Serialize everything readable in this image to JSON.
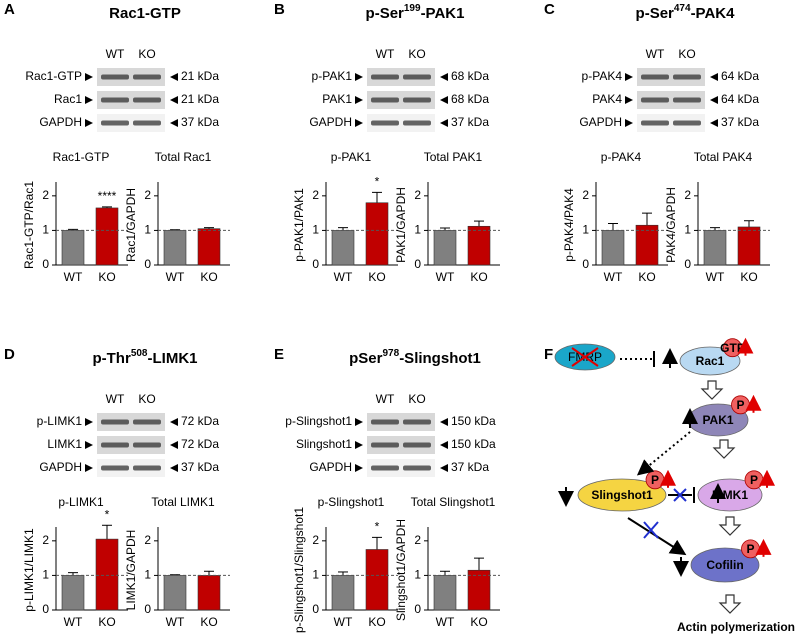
{
  "panels": [
    {
      "letter": "A",
      "title_parts": [
        {
          "text": "Rac1-GTP"
        }
      ],
      "lanes": [
        "WT",
        "KO"
      ],
      "blots": [
        {
          "label": "Rac1-GTP",
          "size": "21 kDa"
        },
        {
          "label": "Rac1",
          "size": "21 kDa"
        },
        {
          "label": "GAPDH",
          "size": "37 kDa"
        }
      ]
    },
    {
      "letter": "B",
      "title_parts": [
        {
          "text": "p-Ser"
        },
        {
          "text": "199",
          "sup": true
        },
        {
          "text": "-PAK1"
        }
      ],
      "lanes": [
        "WT",
        "KO"
      ],
      "blots": [
        {
          "label": "p-PAK1",
          "size": "68 kDa"
        },
        {
          "label": "PAK1",
          "size": "68 kDa"
        },
        {
          "label": "GAPDH",
          "size": "37 kDa"
        }
      ]
    },
    {
      "letter": "C",
      "title_parts": [
        {
          "text": "p-Ser"
        },
        {
          "text": "474",
          "sup": true
        },
        {
          "text": "-PAK4"
        }
      ],
      "lanes": [
        "WT",
        "KO"
      ],
      "blots": [
        {
          "label": "p-PAK4",
          "size": "64 kDa"
        },
        {
          "label": "PAK4",
          "size": "64 kDa"
        },
        {
          "label": "GAPDH",
          "size": "37 kDa"
        }
      ]
    },
    {
      "letter": "D",
      "title_parts": [
        {
          "text": "p-Thr"
        },
        {
          "text": "508",
          "sup": true
        },
        {
          "text": "-LIMK1"
        }
      ],
      "lanes": [
        "WT",
        "KO"
      ],
      "blots": [
        {
          "label": "p-LIMK1",
          "size": "72 kDa"
        },
        {
          "label": "LIMK1",
          "size": "72 kDa"
        },
        {
          "label": "GAPDH",
          "size": "37 kDa"
        }
      ]
    },
    {
      "letter": "E",
      "title_parts": [
        {
          "text": "pSer"
        },
        {
          "text": "978",
          "sup": true
        },
        {
          "text": "-Slingshot1"
        }
      ],
      "lanes": [
        "WT",
        "KO"
      ],
      "blots": [
        {
          "label": "p-Slingshot1",
          "size": "150 kDa"
        },
        {
          "label": "Slingshot1",
          "size": "150 kDa"
        },
        {
          "label": "GAPDH",
          "size": "37 kDa"
        }
      ]
    }
  ],
  "chart_data": [
    {
      "type": "bar",
      "title": "Rac1-GTP",
      "y_label": "Rac1-GTP/Rac1",
      "categories": [
        "WT",
        "KO"
      ],
      "values": [
        1.0,
        1.65
      ],
      "errors": [
        0.03,
        0.03
      ],
      "colors": [
        "#808080",
        "#c00000"
      ],
      "annotation": "****",
      "reference": 1,
      "ylim": [
        0,
        2.4
      ],
      "yticks": [
        0,
        1,
        2
      ]
    },
    {
      "type": "bar",
      "title": "Total Rac1",
      "y_label": "Rac1/GAPDH",
      "categories": [
        "WT",
        "KO"
      ],
      "values": [
        1.0,
        1.05
      ],
      "errors": [
        0.02,
        0.03
      ],
      "colors": [
        "#808080",
        "#c00000"
      ],
      "reference": 1,
      "ylim": [
        0,
        2.4
      ],
      "yticks": [
        0,
        1,
        2
      ]
    },
    {
      "type": "bar",
      "title": "p-PAK1",
      "y_label": "p-PAK1/PAK1",
      "categories": [
        "WT",
        "KO"
      ],
      "values": [
        1.0,
        1.8
      ],
      "errors": [
        0.08,
        0.3
      ],
      "colors": [
        "#808080",
        "#c00000"
      ],
      "annotation": "*",
      "reference": 1,
      "ylim": [
        0,
        2.4
      ],
      "yticks": [
        0,
        1,
        2
      ]
    },
    {
      "type": "bar",
      "title": "Total PAK1",
      "y_label": "PAK1/GAPDH",
      "categories": [
        "WT",
        "KO"
      ],
      "values": [
        1.0,
        1.12
      ],
      "errors": [
        0.07,
        0.15
      ],
      "colors": [
        "#808080",
        "#c00000"
      ],
      "reference": 1,
      "ylim": [
        0,
        2.4
      ],
      "yticks": [
        0,
        1,
        2
      ]
    },
    {
      "type": "bar",
      "title": "p-PAK4",
      "y_label": "p-PAK4/PAK4",
      "categories": [
        "WT",
        "KO"
      ],
      "values": [
        1.0,
        1.15
      ],
      "errors": [
        0.2,
        0.35
      ],
      "colors": [
        "#808080",
        "#c00000"
      ],
      "reference": 1,
      "ylim": [
        0,
        2.4
      ],
      "yticks": [
        0,
        1,
        2
      ]
    },
    {
      "type": "bar",
      "title": "Total PAK4",
      "y_label": "PAK4/GAPDH",
      "categories": [
        "WT",
        "KO"
      ],
      "values": [
        1.0,
        1.1
      ],
      "errors": [
        0.08,
        0.18
      ],
      "colors": [
        "#808080",
        "#c00000"
      ],
      "reference": 1,
      "ylim": [
        0,
        2.4
      ],
      "yticks": [
        0,
        1,
        2
      ]
    },
    {
      "type": "bar",
      "title": "p-LIMK1",
      "y_label": "p-LIMK1/LIMK1",
      "categories": [
        "WT",
        "KO"
      ],
      "values": [
        1.0,
        2.05
      ],
      "errors": [
        0.08,
        0.4
      ],
      "colors": [
        "#808080",
        "#c00000"
      ],
      "annotation": "*",
      "reference": 1,
      "ylim": [
        0,
        2.4
      ],
      "yticks": [
        0,
        1,
        2
      ]
    },
    {
      "type": "bar",
      "title": "Total LIMK1",
      "y_label": "LIMK1/GAPDH",
      "categories": [
        "WT",
        "KO"
      ],
      "values": [
        1.0,
        1.0
      ],
      "errors": [
        0.02,
        0.12
      ],
      "colors": [
        "#808080",
        "#c00000"
      ],
      "reference": 1,
      "ylim": [
        0,
        2.4
      ],
      "yticks": [
        0,
        1,
        2
      ]
    },
    {
      "type": "bar",
      "title": "p-Slingshot1",
      "y_label": "p-Slingshot1/Slingshot1",
      "categories": [
        "WT",
        "KO"
      ],
      "values": [
        1.0,
        1.75
      ],
      "errors": [
        0.1,
        0.35
      ],
      "colors": [
        "#808080",
        "#c00000"
      ],
      "annotation": "*",
      "reference": 1,
      "ylim": [
        0,
        2.4
      ],
      "yticks": [
        0,
        1,
        2
      ]
    },
    {
      "type": "bar",
      "title": "Total Slingshot1",
      "y_label": "Slingshot1/GAPDH",
      "categories": [
        "WT",
        "KO"
      ],
      "values": [
        1.0,
        1.15
      ],
      "errors": [
        0.12,
        0.35
      ],
      "colors": [
        "#808080",
        "#c00000"
      ],
      "reference": 1,
      "ylim": [
        0,
        2.4
      ],
      "yticks": [
        0,
        1,
        2
      ]
    }
  ],
  "diagram": {
    "letter": "F",
    "nodes": [
      {
        "label": "FMRP"
      },
      {
        "label": "Rac1",
        "badge": "GTP"
      },
      {
        "label": "PAK1",
        "badge": "P"
      },
      {
        "label": "Slingshot1",
        "badge": "P"
      },
      {
        "label": "LIMK1",
        "badge": "P"
      },
      {
        "label": "Cofilin",
        "badge": "P"
      }
    ],
    "output": "Actin polymerization"
  }
}
